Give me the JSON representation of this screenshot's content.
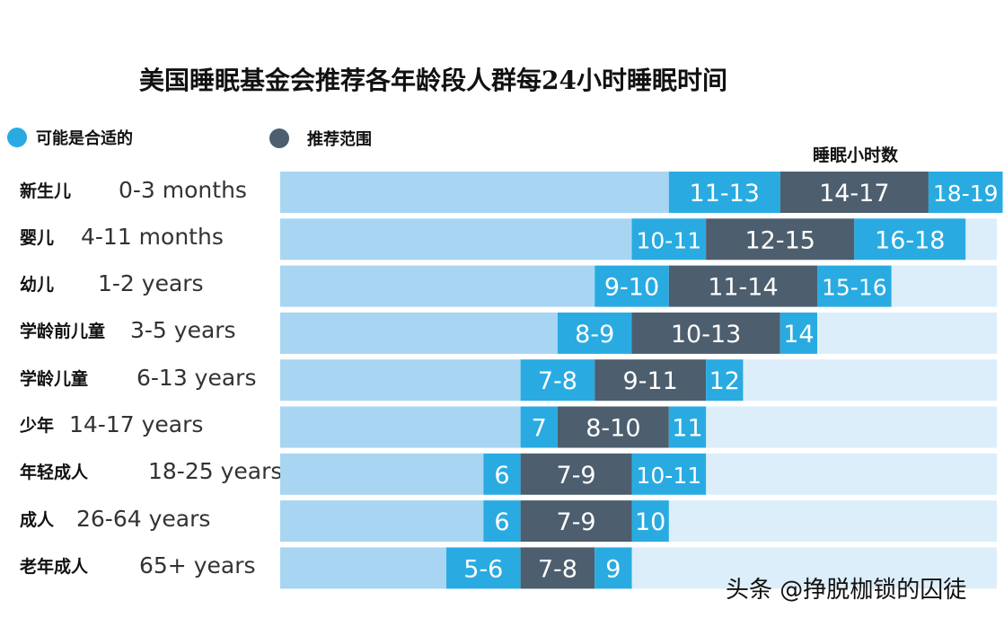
{
  "title": "美国睡眠基金会推荐各年龄段人群每24小时睡眠时间",
  "legend": [
    {
      "label": "可能是合适的",
      "color": "#29ABE2"
    },
    {
      "label": "推荐范围",
      "color": "#4D5E6E"
    }
  ],
  "watermark": "头条 @挣脱枷锁的囚徒",
  "chart_data": {
    "type": "bar",
    "subtype": "horizontal range bars",
    "xlabel": "睡眠小时数",
    "colors": {
      "background_bar": "#A8D5F2",
      "may_be_appropriate": "#29ABE2",
      "recommended": "#4D5E6E",
      "segment_text": "#ffffff"
    },
    "categories": [
      {
        "group": "新生儿",
        "age": "0-3 months",
        "segments": [
          {
            "kind": "may_be_appropriate",
            "label": "11-13",
            "start": 11,
            "end": 14
          },
          {
            "kind": "recommended",
            "label": "14-17",
            "start": 14,
            "end": 18
          },
          {
            "kind": "may_be_appropriate",
            "label": "18-19",
            "start": 18,
            "end": 20
          }
        ]
      },
      {
        "group": "婴儿",
        "age": "4-11 months",
        "segments": [
          {
            "kind": "may_be_appropriate",
            "label": "10-11",
            "start": 10,
            "end": 12
          },
          {
            "kind": "recommended",
            "label": "12-15",
            "start": 12,
            "end": 16
          },
          {
            "kind": "may_be_appropriate",
            "label": "16-18",
            "start": 16,
            "end": 19
          }
        ]
      },
      {
        "group": "幼儿",
        "age": "1-2 years",
        "segments": [
          {
            "kind": "may_be_appropriate",
            "label": "9-10",
            "start": 9,
            "end": 11
          },
          {
            "kind": "recommended",
            "label": "11-14",
            "start": 11,
            "end": 15
          },
          {
            "kind": "may_be_appropriate",
            "label": "15-16",
            "start": 15,
            "end": 17
          }
        ]
      },
      {
        "group": "学龄前儿童",
        "age": "3-5 years",
        "segments": [
          {
            "kind": "may_be_appropriate",
            "label": "8-9",
            "start": 8,
            "end": 10
          },
          {
            "kind": "recommended",
            "label": "10-13",
            "start": 10,
            "end": 14
          },
          {
            "kind": "may_be_appropriate",
            "label": "14",
            "start": 14,
            "end": 15
          }
        ]
      },
      {
        "group": "学龄儿童",
        "age": "6-13 years",
        "segments": [
          {
            "kind": "may_be_appropriate",
            "label": "7-8",
            "start": 7,
            "end": 9
          },
          {
            "kind": "recommended",
            "label": "9-11",
            "start": 9,
            "end": 12
          },
          {
            "kind": "may_be_appropriate",
            "label": "12",
            "start": 12,
            "end": 13
          }
        ]
      },
      {
        "group": "少年",
        "age": "14-17 years",
        "segments": [
          {
            "kind": "may_be_appropriate",
            "label": "7",
            "start": 7,
            "end": 8
          },
          {
            "kind": "recommended",
            "label": "8-10",
            "start": 8,
            "end": 11
          },
          {
            "kind": "may_be_appropriate",
            "label": "11",
            "start": 11,
            "end": 12
          }
        ]
      },
      {
        "group": "年轻成人",
        "age": "18-25 years",
        "segments": [
          {
            "kind": "may_be_appropriate",
            "label": "6",
            "start": 6,
            "end": 7
          },
          {
            "kind": "recommended",
            "label": "7-9",
            "start": 7,
            "end": 10
          },
          {
            "kind": "may_be_appropriate",
            "label": "10-11",
            "start": 10,
            "end": 12
          }
        ]
      },
      {
        "group": "成人",
        "age": "26-64 years",
        "segments": [
          {
            "kind": "may_be_appropriate",
            "label": "6",
            "start": 6,
            "end": 7
          },
          {
            "kind": "recommended",
            "label": "7-9",
            "start": 7,
            "end": 10
          },
          {
            "kind": "may_be_appropriate",
            "label": "10",
            "start": 10,
            "end": 11
          }
        ]
      },
      {
        "group": "老年成人",
        "age": "65+ years",
        "segments": [
          {
            "kind": "may_be_appropriate",
            "label": "5-6",
            "start": 5,
            "end": 7
          },
          {
            "kind": "recommended",
            "label": "7-8",
            "start": 7,
            "end": 9
          },
          {
            "kind": "may_be_appropriate",
            "label": "9",
            "start": 9,
            "end": 10
          }
        ]
      }
    ]
  }
}
